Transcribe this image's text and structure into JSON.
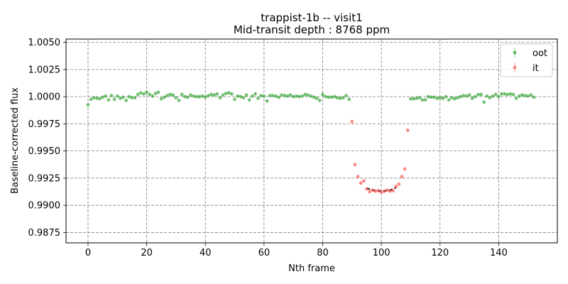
{
  "chart_data": {
    "type": "scatter",
    "title": "trappist-1b -- visit1",
    "subtitle": "Mid-transit depth : 8768 ppm",
    "xlabel": "Nth frame",
    "ylabel": "Baseline-corrected flux",
    "xlim": [
      -7.5,
      160
    ],
    "ylim": [
      0.98655,
      1.0053
    ],
    "xticks": [
      0,
      20,
      40,
      60,
      80,
      100,
      120,
      140
    ],
    "yticks": [
      0.9875,
      0.99,
      0.9925,
      0.995,
      0.9975,
      1.0,
      1.0025,
      1.005
    ],
    "ytick_labels": [
      "0.9875",
      "0.9900",
      "0.9925",
      "0.9950",
      "0.9975",
      "1.0000",
      "1.0025",
      "1.0050"
    ],
    "grid": true,
    "legend_position": "top-right",
    "series": [
      {
        "name": "oot",
        "color": "#2ca02c",
        "points": [
          [
            0,
            0.99925
          ],
          [
            1,
            0.99975
          ],
          [
            2,
            0.9999
          ],
          [
            3,
            0.99985
          ],
          [
            4,
            0.9998
          ],
          [
            5,
            0.99995
          ],
          [
            6,
            1.00005
          ],
          [
            7,
            0.9997
          ],
          [
            8,
            1.0001
          ],
          [
            9,
            0.99975
          ],
          [
            10,
            1.00005
          ],
          [
            11,
            0.99985
          ],
          [
            12,
            0.99995
          ],
          [
            13,
            0.99965
          ],
          [
            14,
            1.0
          ],
          [
            15,
            0.9999
          ],
          [
            16,
            0.9999
          ],
          [
            17,
            1.0002
          ],
          [
            18,
            1.00035
          ],
          [
            19,
            1.00025
          ],
          [
            20,
            1.0004
          ],
          [
            21,
            1.0002
          ],
          [
            22,
            1.00005
          ],
          [
            23,
            1.0003
          ],
          [
            24,
            1.0004
          ],
          [
            25,
            0.9998
          ],
          [
            26,
            0.99995
          ],
          [
            27,
            1.0001
          ],
          [
            28,
            1.0002
          ],
          [
            29,
            1.00015
          ],
          [
            30,
            0.9999
          ],
          [
            31,
            0.99965
          ],
          [
            32,
            1.0002
          ],
          [
            33,
            1.0
          ],
          [
            34,
            0.99995
          ],
          [
            35,
            1.00015
          ],
          [
            36,
            1.00005
          ],
          [
            37,
            1.0
          ],
          [
            38,
            1.0
          ],
          [
            39,
            1.00005
          ],
          [
            40,
            0.99995
          ],
          [
            41,
            1.0001
          ],
          [
            42,
            1.0002
          ],
          [
            43,
            1.00015
          ],
          [
            44,
            1.00025
          ],
          [
            45,
            0.9999
          ],
          [
            46,
            1.00015
          ],
          [
            47,
            1.0003
          ],
          [
            48,
            1.00035
          ],
          [
            49,
            1.00025
          ],
          [
            50,
            0.99975
          ],
          [
            51,
            1.00005
          ],
          [
            52,
            1.0
          ],
          [
            53,
            0.9999
          ],
          [
            54,
            1.00015
          ],
          [
            55,
            0.9997
          ],
          [
            56,
            1.00005
          ],
          [
            57,
            1.00025
          ],
          [
            58,
            0.99985
          ],
          [
            59,
            1.0001
          ],
          [
            60,
            1.00005
          ],
          [
            61,
            0.9996
          ],
          [
            62,
            1.0001
          ],
          [
            63,
            1.0001
          ],
          [
            64,
            1.00005
          ],
          [
            65,
            0.99995
          ],
          [
            66,
            1.00015
          ],
          [
            67,
            1.0001
          ],
          [
            68,
            1.00005
          ],
          [
            69,
            1.00015
          ],
          [
            70,
            1.0
          ],
          [
            71,
            1.00005
          ],
          [
            72,
            1.0
          ],
          [
            73,
            1.00005
          ],
          [
            74,
            1.0002
          ],
          [
            75,
            1.00015
          ],
          [
            76,
            1.00005
          ],
          [
            77,
            0.99995
          ],
          [
            78,
            0.99985
          ],
          [
            79,
            0.99965
          ],
          [
            80,
            1.0002
          ],
          [
            81,
            1.0
          ],
          [
            82,
            0.99995
          ],
          [
            83,
            0.99995
          ],
          [
            84,
            1.0
          ],
          [
            85,
            0.9999
          ],
          [
            86,
            0.99985
          ],
          [
            87,
            0.9999
          ],
          [
            88,
            1.0001
          ],
          [
            89,
            0.99975
          ],
          [
            110,
            0.9998
          ],
          [
            111,
            0.9998
          ],
          [
            112,
            0.99985
          ],
          [
            113,
            0.9999
          ],
          [
            114,
            0.9997
          ],
          [
            115,
            0.9997
          ],
          [
            116,
            1.0
          ],
          [
            117,
            0.99995
          ],
          [
            118,
            0.99995
          ],
          [
            119,
            0.99985
          ],
          [
            120,
            0.9999
          ],
          [
            121,
            0.99985
          ],
          [
            122,
            1.0
          ],
          [
            123,
            0.9997
          ],
          [
            124,
            0.9999
          ],
          [
            125,
            0.9998
          ],
          [
            126,
            0.9999
          ],
          [
            127,
            1.0
          ],
          [
            128,
            1.0001
          ],
          [
            129,
            1.00005
          ],
          [
            130,
            1.00015
          ],
          [
            131,
            0.99985
          ],
          [
            132,
            1.0
          ],
          [
            133,
            1.0002
          ],
          [
            134,
            1.0002
          ],
          [
            135,
            0.9995
          ],
          [
            136,
            1.00005
          ],
          [
            137,
            0.9999
          ],
          [
            138,
            1.00005
          ],
          [
            139,
            1.0002
          ],
          [
            140,
            1.0
          ],
          [
            141,
            1.00025
          ],
          [
            142,
            1.00025
          ],
          [
            143,
            1.0002
          ],
          [
            144,
            1.00025
          ],
          [
            145,
            1.0002
          ],
          [
            146,
            0.99985
          ],
          [
            147,
            1.00005
          ],
          [
            148,
            1.00015
          ],
          [
            149,
            1.0001
          ],
          [
            150,
            1.00005
          ],
          [
            151,
            1.00015
          ],
          [
            152,
            0.99995
          ]
        ]
      },
      {
        "name": "it",
        "color": "#ff4a4a",
        "points": [
          [
            90,
            0.9977
          ],
          [
            91,
            0.99375
          ],
          [
            92,
            0.99265
          ],
          [
            93,
            0.99205
          ],
          [
            94,
            0.99225
          ],
          [
            95,
            0.9915
          ],
          [
            96,
            0.99125
          ],
          [
            97,
            0.9914
          ],
          [
            98,
            0.9913
          ],
          [
            99,
            0.99135
          ],
          [
            100,
            0.9912
          ],
          [
            101,
            0.9913
          ],
          [
            102,
            0.9914
          ],
          [
            103,
            0.9913
          ],
          [
            104,
            0.99135
          ],
          [
            105,
            0.99175
          ],
          [
            106,
            0.99195
          ],
          [
            107,
            0.99265
          ],
          [
            108,
            0.99335
          ],
          [
            109,
            0.9969
          ]
        ]
      }
    ],
    "model": {
      "color": "#000000",
      "style": "dashed",
      "points": [
        [
          95,
          0.9916
        ],
        [
          96,
          0.99148
        ],
        [
          97,
          0.9914
        ],
        [
          98,
          0.99135
        ],
        [
          99,
          0.99133
        ],
        [
          100,
          0.99132
        ],
        [
          101,
          0.99133
        ],
        [
          102,
          0.99135
        ],
        [
          103,
          0.9914
        ],
        [
          104,
          0.9915
        ],
        [
          105,
          0.99165
        ]
      ]
    }
  }
}
